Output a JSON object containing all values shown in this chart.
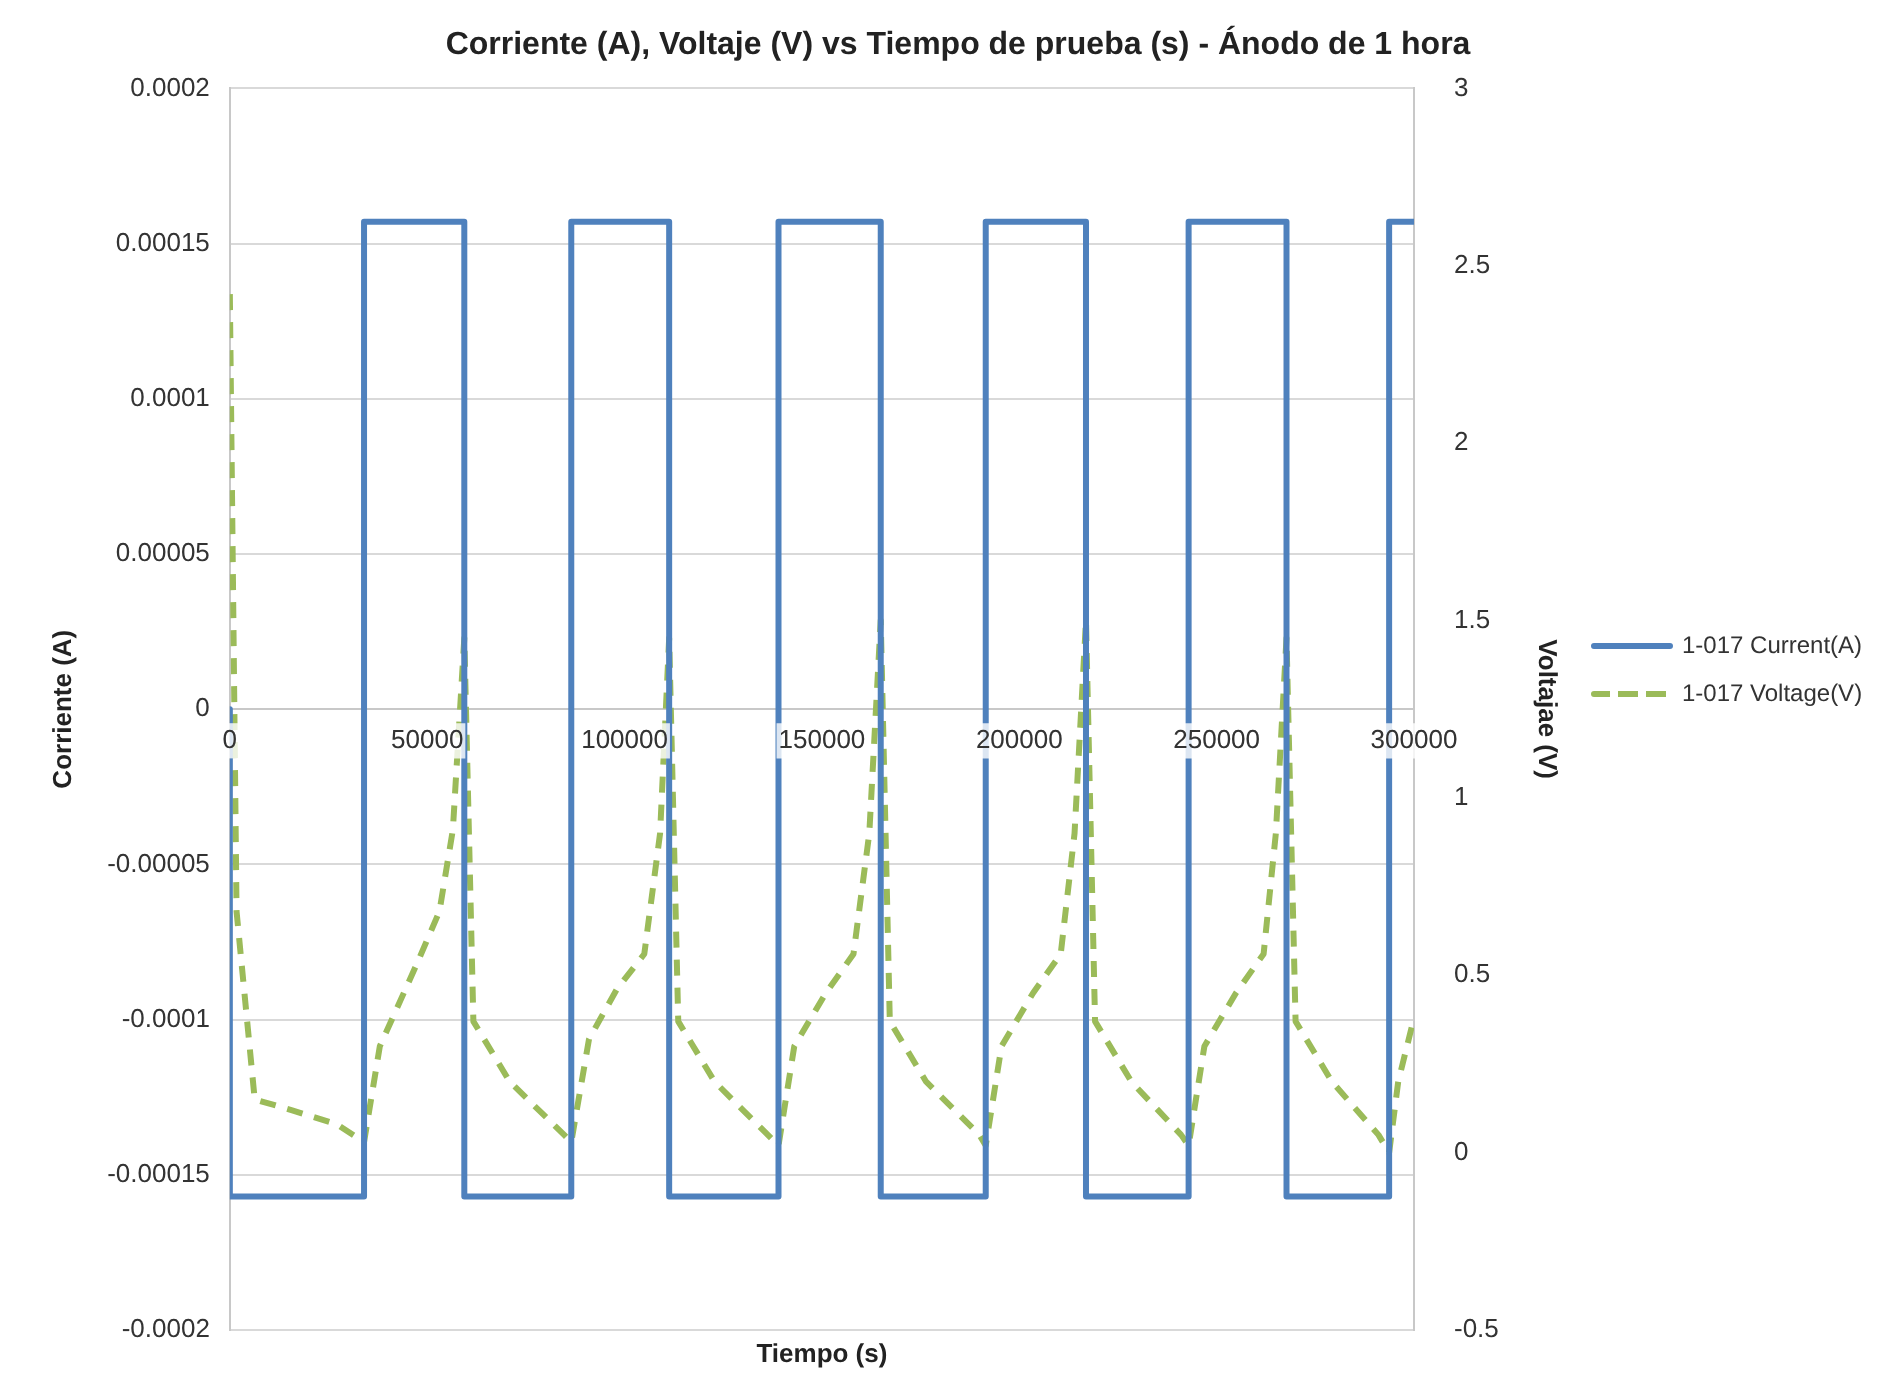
{
  "chart_data": {
    "type": "line",
    "title": "Corriente (A), Voltaje (V) vs Tiempo de prueba (s) - Ánodo de 1 hora",
    "xlabel": "Tiempo (s)",
    "ylabel": "Corriente (A)",
    "y2label": "Voltajae (V)",
    "xlim": [
      0,
      300000
    ],
    "xticks": [
      0,
      50000,
      100000,
      150000,
      200000,
      250000,
      300000
    ],
    "ylim": [
      -0.0002,
      0.0002
    ],
    "yticks": [
      -0.0002,
      -0.00015,
      -0.0001,
      {
        "value": -5e-05,
        "label": "-0.00005"
      },
      0,
      {
        "value": 5e-05,
        "label": "0.00005"
      },
      0.0001,
      0.00015,
      0.0002
    ],
    "y2lim": [
      -0.5,
      3
    ],
    "y2ticks": [
      -0.5,
      0,
      0.5,
      1,
      1.5,
      2,
      2.5,
      3
    ],
    "grid": "y",
    "legend": "right",
    "series": [
      {
        "name": "1-017 Current(A)",
        "color": "#4f81bd",
        "line_style": "solid",
        "x": [
          0,
          0,
          34000,
          34000,
          59400,
          59400,
          86500,
          86500,
          111300,
          111300,
          139000,
          139000,
          164900,
          164900,
          191500,
          191500,
          216900,
          216900,
          242900,
          242900,
          267700,
          267700,
          293700,
          293700,
          300000
        ],
        "values": [
          0,
          -0.000157,
          -0.000157,
          0.000157,
          0.000157,
          -0.000157,
          -0.000157,
          0.000157,
          0.000157,
          -0.000157,
          -0.000157,
          0.000157,
          0.000157,
          -0.000157,
          -0.000157,
          0.000157,
          0.000157,
          -0.000157,
          -0.000157,
          0.000157,
          0.000157,
          -0.000157,
          -0.000157,
          0.000157,
          0.000157
        ]
      },
      {
        "name": "1-017 Voltage(V)",
        "color": "#9bbb59",
        "line_style": "dashed",
        "axis": "y2",
        "x": [
          0,
          1700,
          6300,
          15600,
          27100,
          34000,
          38000,
          47300,
          53100,
          56500,
          59400,
          61700,
          70900,
          84700,
          86500,
          91000,
          98000,
          105000,
          109000,
          111300,
          113600,
          122800,
          136300,
          139000,
          143000,
          151000,
          158000,
          162000,
          164900,
          167200,
          176400,
          189900,
          191500,
          195500,
          203500,
          210500,
          214000,
          216900,
          219200,
          228400,
          241000,
          242900,
          246900,
          254900,
          261900,
          265000,
          267700,
          270000,
          279200,
          291000,
          293700,
          296000,
          300000
        ],
        "values": [
          2.42,
          0.68,
          0.15,
          0.12,
          0.08,
          0.03,
          0.3,
          0.53,
          0.68,
          0.91,
          1.45,
          0.37,
          0.2,
          0.05,
          0.03,
          0.32,
          0.46,
          0.56,
          0.9,
          1.45,
          0.37,
          0.2,
          0.05,
          0.02,
          0.3,
          0.45,
          0.56,
          0.9,
          1.5,
          0.37,
          0.2,
          0.05,
          0.02,
          0.3,
          0.45,
          0.56,
          0.9,
          1.5,
          0.37,
          0.2,
          0.05,
          0.02,
          0.3,
          0.45,
          0.56,
          0.9,
          1.45,
          0.37,
          0.2,
          0.05,
          0.0,
          0.2,
          0.38
        ]
      }
    ]
  }
}
